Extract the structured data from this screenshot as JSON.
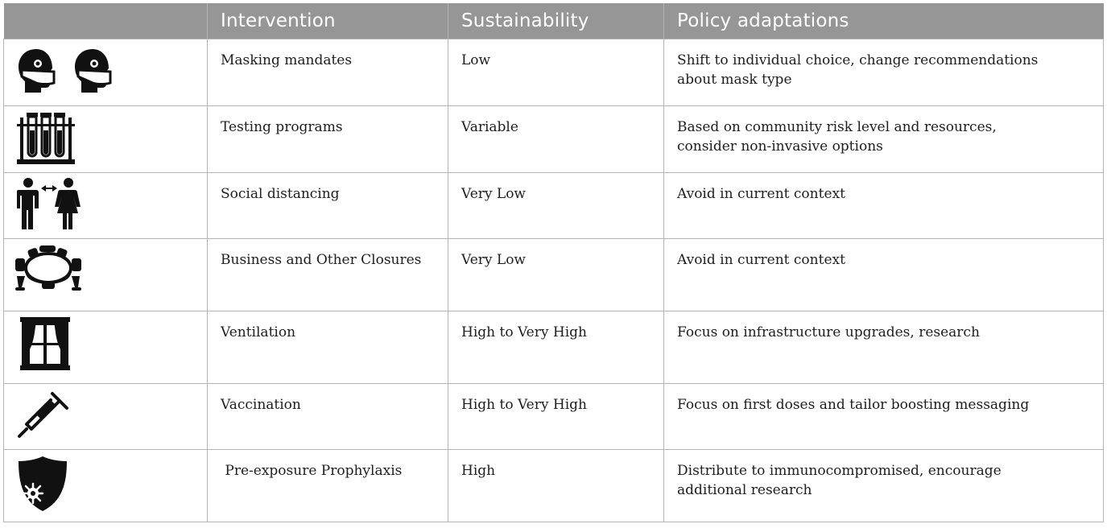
{
  "header": {
    "icon_col": "",
    "intervention": "Intervention",
    "sustainability": "Sustainability",
    "policy": "Policy adaptations"
  },
  "rows": [
    {
      "icon": "masked-head-icon",
      "intervention": "Masking mandates",
      "sustainability": "Low",
      "policy": [
        "Shift to individual choice, change recommendations",
        "about mask type"
      ]
    },
    {
      "icon": "test-tubes-icon",
      "intervention": "Testing programs",
      "sustainability": "Variable",
      "policy": [
        "Based on community risk level and resources,",
        "consider non-invasive options"
      ]
    },
    {
      "icon": "social-distance-icon",
      "intervention": "Social distancing",
      "sustainability": "Very Low",
      "policy": [
        "Avoid in current context"
      ]
    },
    {
      "icon": "conference-table-icon",
      "intervention": "Business and Other Closures",
      "sustainability": "Very Low",
      "policy": [
        "Avoid in current context"
      ]
    },
    {
      "icon": "window-curtains-icon",
      "intervention": "Ventilation",
      "sustainability": "High to Very High",
      "policy": [
        "Focus on infrastructure upgrades, research"
      ]
    },
    {
      "icon": "syringe-icon",
      "intervention": "Vaccination",
      "sustainability": "High to Very High",
      "policy": [
        "Focus on first doses and tailor boosting messaging"
      ]
    },
    {
      "icon": "virus-shield-icon",
      "intervention": " Pre-exposure Prophylaxis",
      "sustainability": "High",
      "policy": [
        "Distribute to immunocompromised, encourage",
        "additional research"
      ]
    }
  ],
  "colors": {
    "header_bg": "#969696",
    "border": "#b4b4b4",
    "icon": "#111111"
  }
}
